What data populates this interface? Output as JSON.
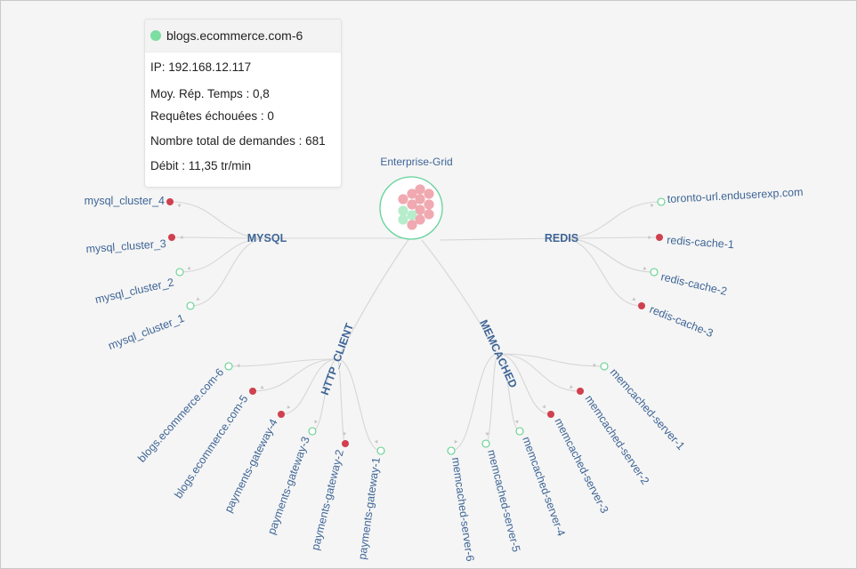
{
  "tooltip": {
    "status_color": "#7ddea2",
    "title": "blogs.ecommerce.com-6",
    "rows": [
      "IP: 192.168.12.117",
      "Moy. Rép. Temps : 0,8",
      "Requêtes échouées : 0",
      "Nombre total de demandes : 681",
      "Débit : 11,35 tr/min"
    ]
  },
  "colors": {
    "ok": "#5fcf8a",
    "bad": "#d0404e",
    "root_ring": "#62d29a"
  },
  "root": {
    "label": "Enterprise-Grid"
  },
  "groups": [
    {
      "name": "MYSQL",
      "nodes": [
        {
          "label": "mysql_cluster_4",
          "status": "bad"
        },
        {
          "label": "mysql_cluster_3",
          "status": "bad"
        },
        {
          "label": "mysql_cluster_2",
          "status": "ok"
        },
        {
          "label": "mysql_cluster_1",
          "status": "ok"
        }
      ]
    },
    {
      "name": "REDIS",
      "nodes": [
        {
          "label": "toronto-url.enduserexp.com",
          "status": "ok"
        },
        {
          "label": "redis-cache-1",
          "status": "bad"
        },
        {
          "label": "redis-cache-2",
          "status": "ok"
        },
        {
          "label": "redis-cache-3",
          "status": "bad"
        }
      ]
    },
    {
      "name": "HTTP_CLIENT",
      "nodes": [
        {
          "label": "blogs.ecommerce.com-6",
          "status": "ok"
        },
        {
          "label": "blogs.ecommerce.com-5",
          "status": "bad"
        },
        {
          "label": "payments-gateway-4",
          "status": "bad"
        },
        {
          "label": "payments-gateway-3",
          "status": "ok"
        },
        {
          "label": "payments-gateway-2",
          "status": "bad"
        },
        {
          "label": "payments-gateway-1",
          "status": "ok"
        }
      ]
    },
    {
      "name": "MEMCACHED",
      "nodes": [
        {
          "label": "memcached-server-6",
          "status": "ok"
        },
        {
          "label": "memcached-server-5",
          "status": "ok"
        },
        {
          "label": "memcached-server-4",
          "status": "ok"
        },
        {
          "label": "memcached-server-3",
          "status": "bad"
        },
        {
          "label": "memcached-server-2",
          "status": "bad"
        },
        {
          "label": "memcached-server-1",
          "status": "ok"
        }
      ]
    }
  ]
}
